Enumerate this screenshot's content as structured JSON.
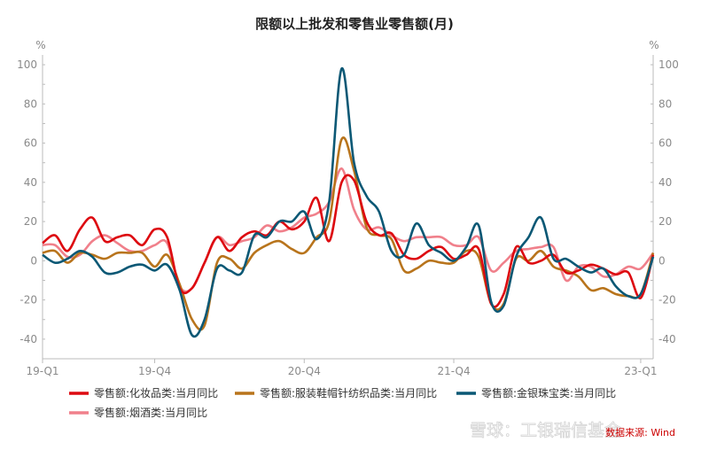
{
  "chart_data": {
    "type": "line",
    "title": "限额以上批发和零售业零售额(月)",
    "y_unit_left": "%",
    "y_unit_right": "%",
    "ylim": [
      -50,
      105
    ],
    "yticks": [
      -40,
      -20,
      0,
      20,
      40,
      60,
      80,
      100
    ],
    "x_tick_labels": [
      "19-Q1",
      "19-Q4",
      "20-Q4",
      "21-Q4",
      "23-Q1"
    ],
    "x": [
      "2019-01",
      "2019-02",
      "2019-03",
      "2019-04",
      "2019-05",
      "2019-06",
      "2019-07",
      "2019-08",
      "2019-09",
      "2019-10",
      "2019-11",
      "2019-12",
      "2020-01",
      "2020-02",
      "2020-03",
      "2020-04",
      "2020-05",
      "2020-06",
      "2020-07",
      "2020-08",
      "2020-09",
      "2020-10",
      "2020-11",
      "2020-12",
      "2021-01",
      "2021-02",
      "2021-03",
      "2021-04",
      "2021-05",
      "2021-06",
      "2021-07",
      "2021-08",
      "2021-09",
      "2021-10",
      "2021-11",
      "2021-12",
      "2022-01",
      "2022-02",
      "2022-03",
      "2022-04",
      "2022-05",
      "2022-06",
      "2022-07",
      "2022-08",
      "2022-09",
      "2022-10",
      "2022-11",
      "2022-12",
      "2023-01",
      "2023-02"
    ],
    "grid": false,
    "legend_position": "bottom",
    "series": [
      {
        "name": "零售额:化妆品类:当月同比",
        "color": "#dd0a10",
        "values": [
          9,
          13,
          5,
          16,
          22,
          10,
          12,
          13,
          8,
          16,
          12,
          -14,
          -14,
          -1,
          12,
          5,
          12,
          15,
          13,
          20,
          16,
          20,
          32,
          10,
          40,
          41,
          20,
          13,
          14,
          3,
          1,
          5,
          7,
          1,
          3,
          6,
          -22,
          -17,
          7,
          -1,
          0,
          3,
          -6,
          -5,
          -2,
          -4,
          -7,
          -6,
          -19,
          3
        ]
      },
      {
        "name": "零售额:服装鞋帽针纺织品类:当月同比",
        "color": "#b8741c",
        "values": [
          4,
          5,
          -1,
          4,
          3,
          1,
          4,
          4,
          4,
          -3,
          3,
          -12,
          -30,
          -33,
          -1,
          1,
          -4,
          4,
          8,
          10,
          6,
          4,
          12,
          20,
          62,
          46,
          17,
          13,
          11,
          -5,
          -4,
          0,
          -1,
          -1,
          5,
          2,
          -22,
          -22,
          1,
          0,
          5,
          -3,
          -5,
          -8,
          -15,
          -14,
          -17,
          -18,
          -17,
          4
        ]
      },
      {
        "name": "零售额:金银珠宝类:当月同比",
        "color": "#0b5875",
        "values": [
          3,
          -1,
          1,
          5,
          2,
          -6,
          -6,
          -3,
          -2,
          -5,
          -2,
          -15,
          -38,
          -30,
          -4,
          -5,
          -6,
          13,
          12,
          20,
          20,
          25,
          11,
          30,
          98,
          50,
          33,
          25,
          5,
          3,
          19,
          8,
          4,
          0,
          7,
          18,
          -21,
          -23,
          2,
          12,
          22,
          1,
          1,
          -3,
          -6,
          -4,
          -13,
          -18,
          -17,
          2
        ]
      },
      {
        "name": "零售额:烟酒类:当月同比",
        "color": "#f0808b",
        "values": [
          8,
          8,
          2,
          3,
          10,
          13,
          9,
          5,
          5,
          8,
          9,
          -13,
          -14,
          -1,
          12,
          8,
          10,
          12,
          18,
          15,
          17,
          22,
          24,
          30,
          47,
          26,
          16,
          17,
          13,
          10,
          12,
          12,
          12,
          8,
          8,
          12,
          -5,
          -1,
          5,
          6,
          7,
          7,
          -10,
          -3,
          -3,
          -8,
          -7,
          -3,
          -4,
          4
        ]
      }
    ],
    "source": "数据来源: Wind"
  }
}
